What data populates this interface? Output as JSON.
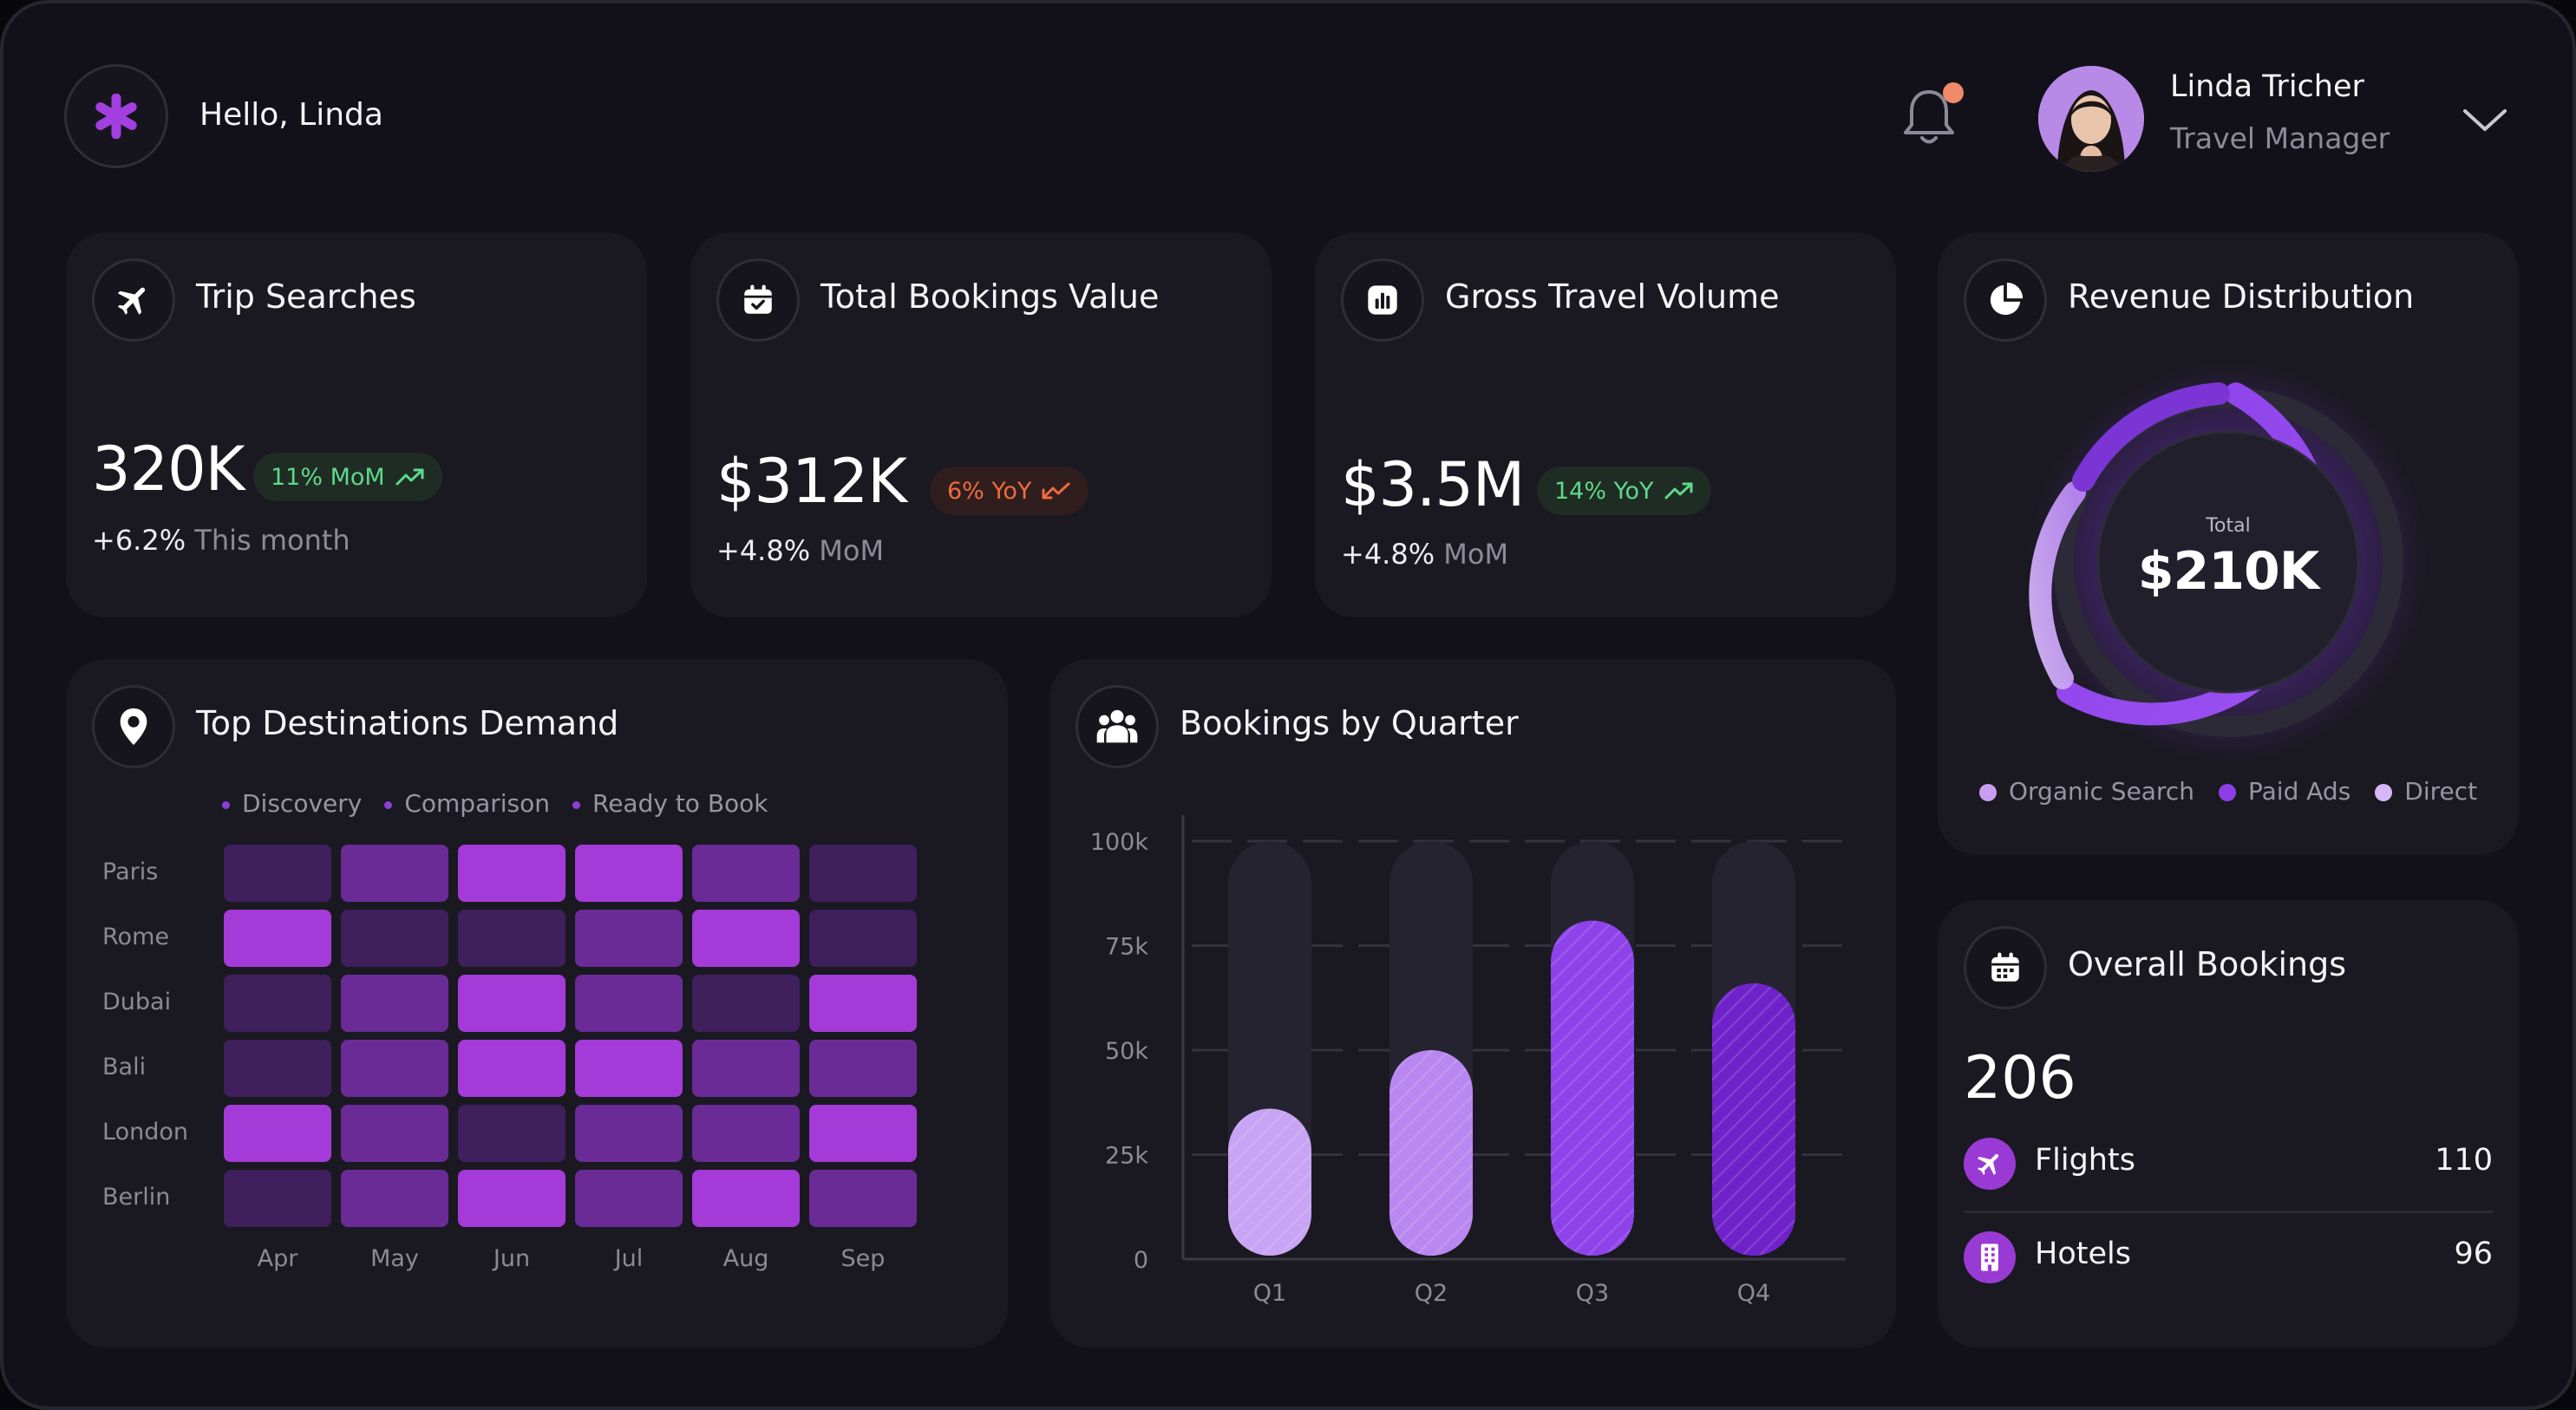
{
  "header": {
    "greeting": "Hello, Linda",
    "user_name": "Linda Tricher",
    "user_role": "Travel Manager",
    "notification_dot_color": "#f08a6a"
  },
  "metrics": [
    {
      "title": "Trip Searches",
      "value": "320K",
      "badge": "11% MoM",
      "badge_trend": "up",
      "sub_value": "+6.2%",
      "sub_label": "This month"
    },
    {
      "title": "Total Bookings Value",
      "value": "$312K",
      "badge": "6% YoY",
      "badge_trend": "down",
      "sub_value": "+4.8%",
      "sub_label": "MoM"
    },
    {
      "title": "Gross Travel Volume",
      "value": "$3.5M",
      "badge": "14% YoY",
      "badge_trend": "up",
      "sub_value": "+4.8%",
      "sub_label": "MoM"
    }
  ],
  "revenue": {
    "title": "Revenue Distribution",
    "total_label": "Total",
    "total_value": "$210K",
    "legend": [
      "Organic Search",
      "Paid Ads",
      "Direct"
    ]
  },
  "heatmap": {
    "title": "Top Destinations Demand",
    "legend": [
      "Discovery",
      "Comparison",
      "Ready to Book"
    ],
    "rows": [
      "Paris",
      "Rome",
      "Dubai",
      "Bali",
      "London",
      "Berlin"
    ],
    "columns": [
      "Apr",
      "May",
      "Jun",
      "Jul",
      "Aug",
      "Sep"
    ],
    "levels": [
      [
        0,
        1,
        2,
        2,
        1,
        0
      ],
      [
        2,
        0,
        0,
        1,
        2,
        0
      ],
      [
        0,
        1,
        2,
        1,
        0,
        2
      ],
      [
        0,
        1,
        2,
        2,
        1,
        1
      ],
      [
        2,
        1,
        0,
        1,
        1,
        2
      ],
      [
        0,
        1,
        2,
        1,
        2,
        1
      ]
    ],
    "level_colors": [
      "#3f1f5c",
      "#6a2b97",
      "#a43ad8"
    ]
  },
  "quarters": {
    "title": "Bookings by Quarter",
    "chart_data": {
      "type": "bar",
      "categories": [
        "Q1",
        "Q2",
        "Q3",
        "Q4"
      ],
      "values": [
        36,
        50,
        81,
        66
      ],
      "y_ticks": [
        "0",
        "25k",
        "50k",
        "75k",
        "100k"
      ],
      "ylim": [
        0,
        100
      ]
    },
    "bar_colors": [
      "#c8a4f4",
      "#b888f0",
      "#8e42ea",
      "#6f22c9"
    ]
  },
  "overall": {
    "title": "Overall Bookings",
    "total": "206",
    "items": [
      {
        "label": "Flights",
        "value": "110"
      },
      {
        "label": "Hotels",
        "value": "96"
      }
    ]
  }
}
